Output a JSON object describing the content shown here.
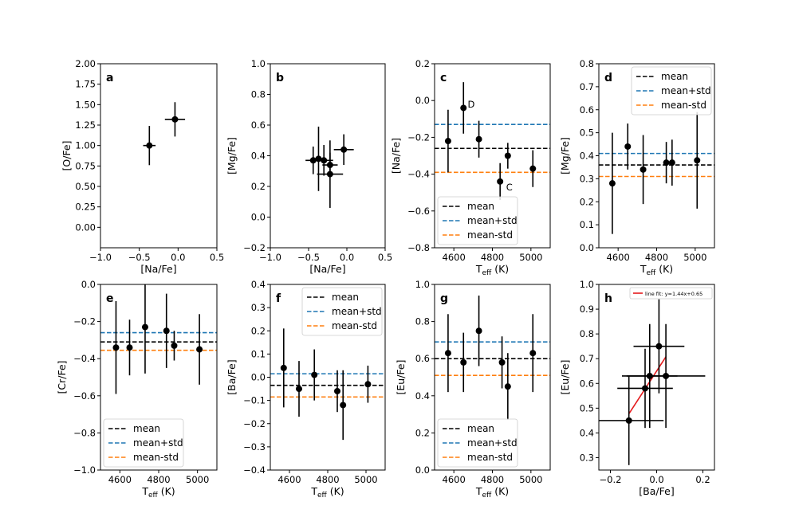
{
  "figure": {
    "width": 997,
    "height": 664
  },
  "colors": {
    "mean": "#000000",
    "mean_plus_std": "#1f77b4",
    "mean_minus_std": "#ff7f0e",
    "fit": "#e41a1c",
    "marker": "#000000"
  },
  "chart_data": [
    {
      "id": "a",
      "panel_label": "a",
      "type": "scatter",
      "xlabel": "[Na/Fe]",
      "ylabel": "[O/Fe]",
      "xlim": [
        -1.0,
        0.5
      ],
      "ylim": [
        -0.25,
        2.0
      ],
      "xticks": [
        -1.0,
        -0.5,
        0.0,
        0.5
      ],
      "xticklabels": [
        "−1.0",
        "−0.5",
        "0.0",
        "0.5"
      ],
      "yticks": [
        0.0,
        0.25,
        0.5,
        0.75,
        1.0,
        1.25,
        1.5,
        1.75,
        2.0
      ],
      "yticklabels": [
        "0.00",
        "0.25",
        "0.50",
        "0.75",
        "1.00",
        "1.25",
        "1.50",
        "1.75",
        "2.00"
      ],
      "points": [
        {
          "x": -0.37,
          "y": 1.0,
          "xerr": 0.08,
          "yerr": 0.24
        },
        {
          "x": -0.04,
          "y": 1.32,
          "xerr": 0.13,
          "yerr": 0.21
        }
      ]
    },
    {
      "id": "b",
      "panel_label": "b",
      "type": "scatter",
      "xlabel": "[Na/Fe]",
      "ylabel": "[Mg/Fe]",
      "xlim": [
        -1.0,
        0.5
      ],
      "ylim": [
        -0.2,
        1.0
      ],
      "xticks": [
        -1.0,
        -0.5,
        0.0,
        0.5
      ],
      "xticklabels": [
        "−1.0",
        "−0.5",
        "0.0",
        "0.5"
      ],
      "yticks": [
        -0.2,
        0.0,
        0.2,
        0.4,
        0.6,
        0.8,
        1.0
      ],
      "yticklabels": [
        "−0.2",
        "0.0",
        "0.2",
        "0.4",
        "0.6",
        "0.8",
        "1.0"
      ],
      "points": [
        {
          "x": -0.44,
          "y": 0.37,
          "xerr": 0.1,
          "yerr": 0.09
        },
        {
          "x": -0.37,
          "y": 0.38,
          "xerr": 0.1,
          "yerr": 0.21
        },
        {
          "x": -0.3,
          "y": 0.37,
          "xerr": 0.12,
          "yerr": 0.1
        },
        {
          "x": -0.22,
          "y": 0.34,
          "xerr": 0.1,
          "yerr": 0.08
        },
        {
          "x": -0.22,
          "y": 0.28,
          "xerr": 0.17,
          "yerr": 0.22
        },
        {
          "x": -0.04,
          "y": 0.44,
          "xerr": 0.13,
          "yerr": 0.1
        }
      ]
    },
    {
      "id": "c",
      "panel_label": "c",
      "type": "scatter",
      "xlabel": "T_eff (K)",
      "ylabel": "[Na/Fe]",
      "xlim": [
        4500,
        5100
      ],
      "ylim": [
        -0.8,
        0.2
      ],
      "xticks": [
        4600,
        4800,
        5000
      ],
      "xticklabels": [
        "4600",
        "4800",
        "5000"
      ],
      "yticks": [
        -0.8,
        -0.6,
        -0.4,
        -0.2,
        0.0,
        0.2
      ],
      "yticklabels": [
        "−0.8",
        "−0.6",
        "−0.4",
        "−0.2",
        "0.0",
        "0.2"
      ],
      "points": [
        {
          "x": 4570,
          "y": -0.22,
          "xerr": 0,
          "yerr": 0.17
        },
        {
          "x": 4650,
          "y": -0.04,
          "xerr": 0,
          "yerr": 0.14
        },
        {
          "x": 4730,
          "y": -0.21,
          "xerr": 0,
          "yerr": 0.1
        },
        {
          "x": 4840,
          "y": -0.44,
          "xerr": 0,
          "yerr": 0.1
        },
        {
          "x": 4880,
          "y": -0.3,
          "xerr": 0,
          "yerr": 0.07
        },
        {
          "x": 5010,
          "y": -0.37,
          "xerr": 0,
          "yerr": 0.1
        }
      ],
      "annotations": [
        {
          "text": "D",
          "x": 4655,
          "y": -0.02
        },
        {
          "text": "C",
          "x": 4855,
          "y": -0.47
        }
      ],
      "hlines": {
        "mean": -0.26,
        "mean_plus_std": -0.13,
        "mean_minus_std": -0.39
      },
      "legend": {
        "position": "lower-left",
        "entries": [
          "mean",
          "mean+std",
          "mean-std"
        ]
      }
    },
    {
      "id": "d",
      "panel_label": "d",
      "type": "scatter",
      "xlabel": "T_eff (K)",
      "ylabel": "[Mg/Fe]",
      "xlim": [
        4500,
        5100
      ],
      "ylim": [
        0.0,
        0.8
      ],
      "xticks": [
        4600,
        4800,
        5000
      ],
      "xticklabels": [
        "4600",
        "4800",
        "5000"
      ],
      "yticks": [
        0.0,
        0.1,
        0.2,
        0.3,
        0.4,
        0.5,
        0.6,
        0.7,
        0.8
      ],
      "yticklabels": [
        "0.0",
        "0.1",
        "0.2",
        "0.3",
        "0.4",
        "0.5",
        "0.6",
        "0.7",
        "0.8"
      ],
      "points": [
        {
          "x": 4570,
          "y": 0.28,
          "xerr": 0,
          "yerr": 0.22
        },
        {
          "x": 4650,
          "y": 0.44,
          "xerr": 0,
          "yerr": 0.1
        },
        {
          "x": 4730,
          "y": 0.34,
          "xerr": 0,
          "yerr": 0.15
        },
        {
          "x": 4850,
          "y": 0.37,
          "xerr": 0,
          "yerr": 0.09
        },
        {
          "x": 4880,
          "y": 0.37,
          "xerr": 0,
          "yerr": 0.1
        },
        {
          "x": 5010,
          "y": 0.38,
          "xerr": 0,
          "yerr": 0.21
        }
      ],
      "hlines": {
        "mean": 0.36,
        "mean_plus_std": 0.41,
        "mean_minus_std": 0.31
      },
      "legend": {
        "position": "upper-right",
        "entries": [
          "mean",
          "mean+std",
          "mean-std"
        ]
      }
    },
    {
      "id": "e",
      "panel_label": "e",
      "type": "scatter",
      "xlabel": "T_eff (K)",
      "ylabel": "[Cr/Fe]",
      "xlim": [
        4500,
        5100
      ],
      "ylim": [
        -1.0,
        0.0
      ],
      "xticks": [
        4600,
        4800,
        5000
      ],
      "xticklabels": [
        "4600",
        "4800",
        "5000"
      ],
      "yticks": [
        -1.0,
        -0.8,
        -0.6,
        -0.4,
        -0.2,
        0.0
      ],
      "yticklabels": [
        "−1.0",
        "−0.8",
        "−0.6",
        "−0.4",
        "−0.2",
        "0.0"
      ],
      "points": [
        {
          "x": 4580,
          "y": -0.34,
          "xerr": 0,
          "yerr": 0.25
        },
        {
          "x": 4650,
          "y": -0.34,
          "xerr": 0,
          "yerr": 0.15
        },
        {
          "x": 4730,
          "y": -0.23,
          "xerr": 0,
          "yerr": 0.25
        },
        {
          "x": 4840,
          "y": -0.25,
          "xerr": 0,
          "yerr": 0.2
        },
        {
          "x": 4880,
          "y": -0.33,
          "xerr": 0,
          "yerr": 0.08
        },
        {
          "x": 5010,
          "y": -0.35,
          "xerr": 0,
          "yerr": 0.19
        }
      ],
      "hlines": {
        "mean": -0.31,
        "mean_plus_std": -0.26,
        "mean_minus_std": -0.355
      },
      "legend": {
        "position": "lower-left",
        "entries": [
          "mean",
          "mean+std",
          "mean-std"
        ]
      }
    },
    {
      "id": "f",
      "panel_label": "f",
      "type": "scatter",
      "xlabel": "T_eff (K)",
      "ylabel": "[Ba/Fe]",
      "xlim": [
        4500,
        5100
      ],
      "ylim": [
        -0.4,
        0.4
      ],
      "xticks": [
        4600,
        4800,
        5000
      ],
      "xticklabels": [
        "4600",
        "4800",
        "5000"
      ],
      "yticks": [
        -0.4,
        -0.3,
        -0.2,
        -0.1,
        0.0,
        0.1,
        0.2,
        0.3,
        0.4
      ],
      "yticklabels": [
        "−0.4",
        "−0.3",
        "−0.2",
        "−0.1",
        "0.0",
        "0.1",
        "0.2",
        "0.3",
        "0.4"
      ],
      "points": [
        {
          "x": 4570,
          "y": 0.04,
          "xerr": 0,
          "yerr": 0.17
        },
        {
          "x": 4650,
          "y": -0.05,
          "xerr": 0,
          "yerr": 0.12
        },
        {
          "x": 4730,
          "y": 0.01,
          "xerr": 0,
          "yerr": 0.11
        },
        {
          "x": 4850,
          "y": -0.06,
          "xerr": 0,
          "yerr": 0.09
        },
        {
          "x": 4880,
          "y": -0.12,
          "xerr": 0,
          "yerr": 0.15
        },
        {
          "x": 5010,
          "y": -0.03,
          "xerr": 0,
          "yerr": 0.08
        }
      ],
      "hlines": {
        "mean": -0.035,
        "mean_plus_std": 0.015,
        "mean_minus_std": -0.085
      },
      "legend": {
        "position": "upper-right",
        "entries": [
          "mean",
          "mean+std",
          "mean-std"
        ]
      }
    },
    {
      "id": "g",
      "panel_label": "g",
      "type": "scatter",
      "xlabel": "T_eff (K)",
      "ylabel": "[Eu/Fe]",
      "xlim": [
        4500,
        5100
      ],
      "ylim": [
        0.0,
        1.0
      ],
      "xticks": [
        4600,
        4800,
        5000
      ],
      "xticklabels": [
        "4600",
        "4800",
        "5000"
      ],
      "yticks": [
        0.0,
        0.2,
        0.4,
        0.6,
        0.8,
        1.0
      ],
      "yticklabels": [
        "0.0",
        "0.2",
        "0.4",
        "0.6",
        "0.8",
        "1.0"
      ],
      "points": [
        {
          "x": 4570,
          "y": 0.63,
          "xerr": 0,
          "yerr": 0.21
        },
        {
          "x": 4650,
          "y": 0.58,
          "xerr": 0,
          "yerr": 0.16
        },
        {
          "x": 4730,
          "y": 0.75,
          "xerr": 0,
          "yerr": 0.19
        },
        {
          "x": 4850,
          "y": 0.58,
          "xerr": 0,
          "yerr": 0.14
        },
        {
          "x": 4880,
          "y": 0.45,
          "xerr": 0,
          "yerr": 0.18
        },
        {
          "x": 5010,
          "y": 0.63,
          "xerr": 0,
          "yerr": 0.21
        }
      ],
      "hlines": {
        "mean": 0.6,
        "mean_plus_std": 0.69,
        "mean_minus_std": 0.51
      },
      "legend": {
        "position": "lower-left",
        "entries": [
          "mean",
          "mean+std",
          "mean-std"
        ]
      }
    },
    {
      "id": "h",
      "panel_label": "h",
      "type": "scatter",
      "xlabel": "[Ba/Fe]",
      "ylabel": "[Eu/Fe]",
      "xlim": [
        -0.25,
        0.25
      ],
      "ylim": [
        0.25,
        1.0
      ],
      "xticks": [
        -0.2,
        0.0,
        0.2
      ],
      "xticklabels": [
        "−0.2",
        "0.0",
        "0.2"
      ],
      "yticks": [
        0.3,
        0.4,
        0.5,
        0.6,
        0.7,
        0.8,
        0.9,
        1.0
      ],
      "yticklabels": [
        "0.3",
        "0.4",
        "0.5",
        "0.6",
        "0.7",
        "0.8",
        "0.9",
        "1.0"
      ],
      "points": [
        {
          "x": -0.12,
          "y": 0.45,
          "xerr": 0.15,
          "yerr": 0.18
        },
        {
          "x": -0.05,
          "y": 0.58,
          "xerr": 0.12,
          "yerr": 0.16
        },
        {
          "x": -0.03,
          "y": 0.63,
          "xerr": 0.12,
          "yerr": 0.21
        },
        {
          "x": 0.01,
          "y": 0.75,
          "xerr": 0.11,
          "yerr": 0.19
        },
        {
          "x": 0.04,
          "y": 0.63,
          "xerr": 0.17,
          "yerr": 0.21
        }
      ],
      "fit_line": {
        "slope": 1.44,
        "intercept": 0.65,
        "x_range": [
          -0.12,
          0.04
        ],
        "label": "line fit: y=1.44x+0.65"
      },
      "legend": {
        "position": "upper-right",
        "entries": [
          "line fit: y=1.44x+0.65"
        ]
      }
    }
  ],
  "legend_labels": {
    "mean": "mean",
    "mean_plus_std": "mean+std",
    "mean_minus_std": "mean-std"
  }
}
